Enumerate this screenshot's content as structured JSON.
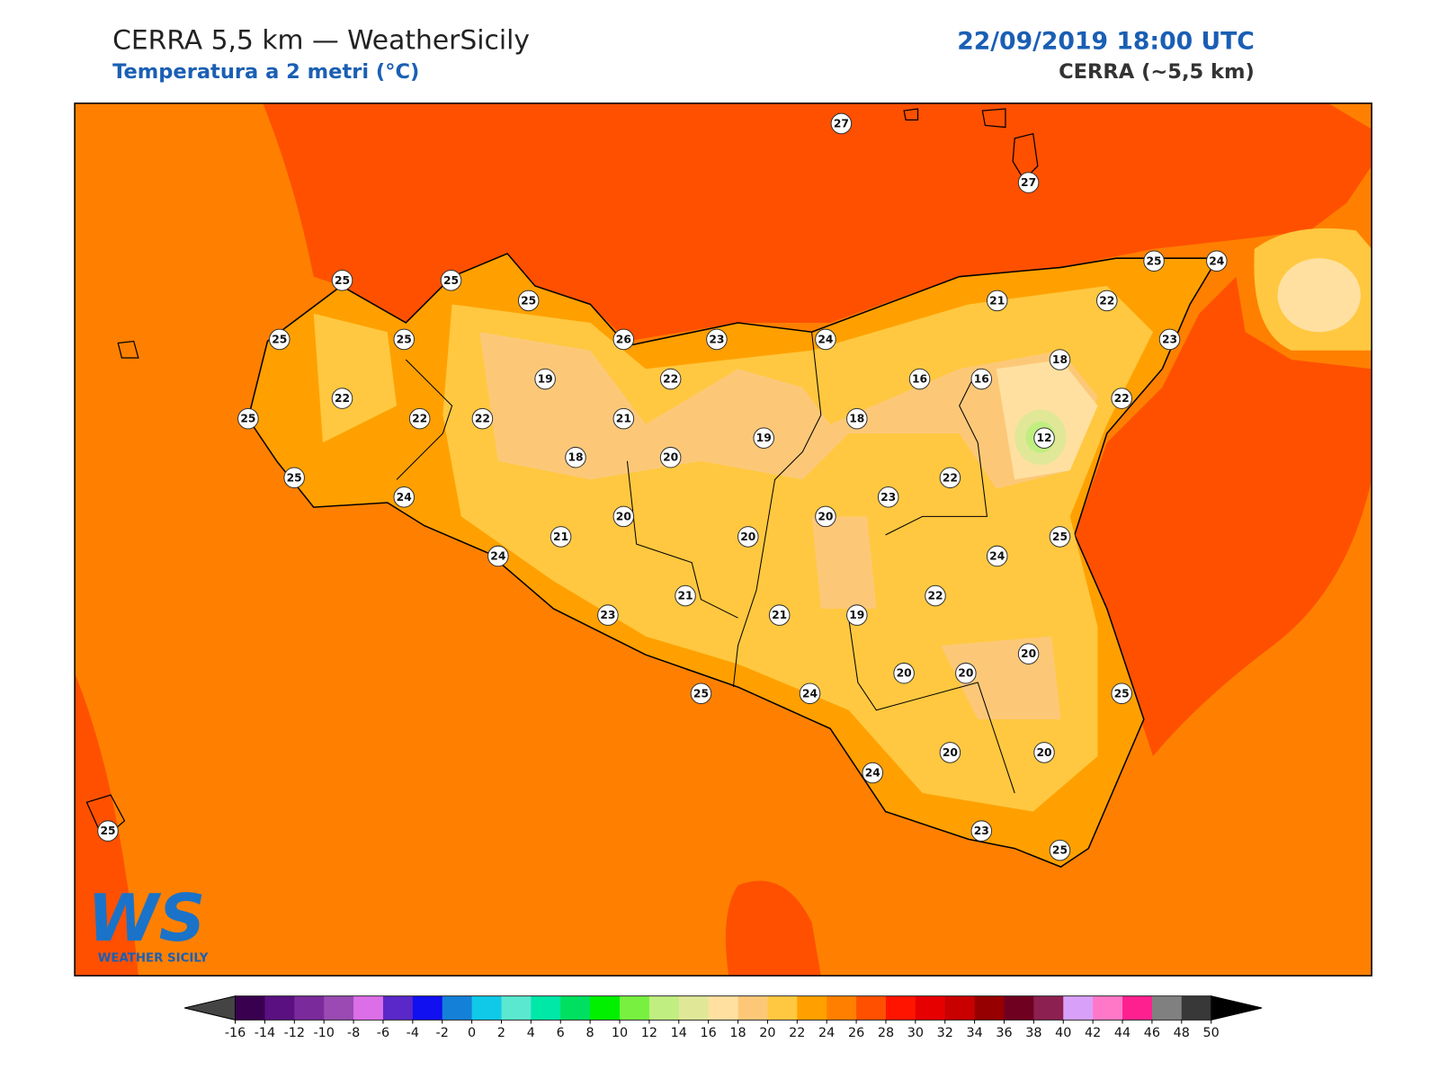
{
  "header": {
    "title": "CERRA 5,5 km — WeatherSicily",
    "subtitle": "Temperatura a 2 metri (°C)",
    "datetime": "22/09/2019 18:00 UTC",
    "model": "CERRA (~5,5 km)"
  },
  "logo": {
    "mark": "WS",
    "name": "WEATHER SICILY"
  },
  "stations": [
    27,
    27,
    25,
    25,
    25,
    25,
    24,
    25,
    25,
    26,
    23,
    24,
    21,
    22,
    23,
    18,
    19,
    22,
    16,
    16,
    22,
    22,
    25,
    22,
    22,
    21,
    18,
    19,
    12,
    18,
    20,
    25,
    22,
    24,
    23,
    20,
    20,
    21,
    20,
    25,
    24,
    24,
    22,
    21,
    23,
    21,
    19,
    20,
    20,
    20,
    25,
    24,
    25,
    20,
    20,
    24,
    25,
    23,
    25
  ],
  "colorbar": {
    "ticks": [
      -16,
      -14,
      -12,
      -10,
      -8,
      -6,
      -4,
      -2,
      0,
      2,
      4,
      6,
      8,
      10,
      12,
      14,
      16,
      18,
      20,
      22,
      24,
      26,
      28,
      30,
      32,
      34,
      36,
      38,
      40,
      42,
      44,
      46,
      48,
      50
    ],
    "colors": [
      "#3a0050",
      "#5a1080",
      "#7a2a9a",
      "#9a4ab2",
      "#dc6ee8",
      "#5a28c8",
      "#1010f0",
      "#1480d8",
      "#10c8e8",
      "#5ae8d0",
      "#00e8a8",
      "#00e060",
      "#00f000",
      "#78f040",
      "#c0ee80",
      "#e0e898",
      "#ffe0a0",
      "#fcc878",
      "#ffc840",
      "#ffa000",
      "#ff8000",
      "#ff5000",
      "#ff1400",
      "#e60000",
      "#c80000",
      "#960000",
      "#700020",
      "#8c2050",
      "#d8a0f8",
      "#ff78c8",
      "#ff2090",
      "#808080",
      "#383838"
    ]
  }
}
